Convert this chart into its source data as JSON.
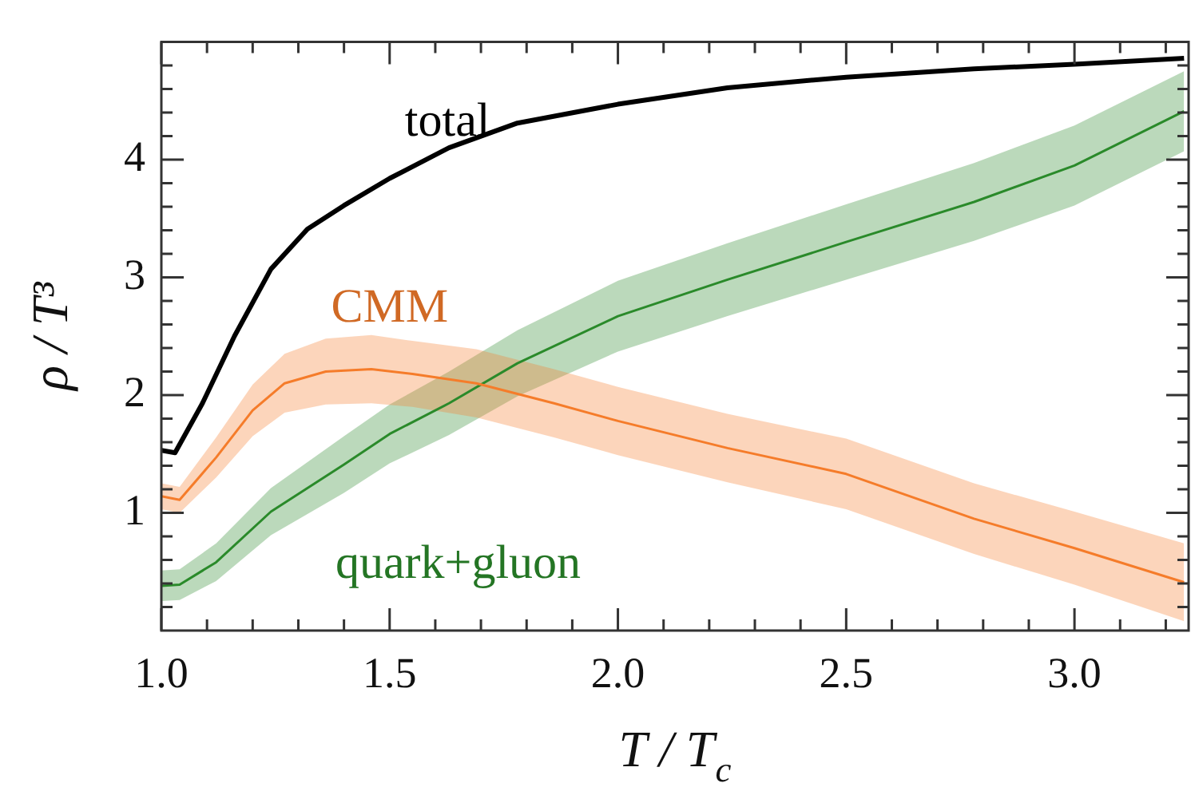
{
  "chart_data": {
    "type": "line",
    "xlabel": "T / T$_{c}$",
    "ylabel": "ρ / T³",
    "xlim": [
      1.0,
      3.25
    ],
    "ylim": [
      0,
      5
    ],
    "xticks": [
      {
        "value": 1.0,
        "label": "1.0"
      },
      {
        "value": 1.1,
        "label": null
      },
      {
        "value": 1.2,
        "label": null
      },
      {
        "value": 1.3,
        "label": null
      },
      {
        "value": 1.4,
        "label": null
      },
      {
        "value": 1.5,
        "label": "1.5"
      },
      {
        "value": 1.6,
        "label": null
      },
      {
        "value": 1.7,
        "label": null
      },
      {
        "value": 1.8,
        "label": null
      },
      {
        "value": 1.9,
        "label": null
      },
      {
        "value": 2.0,
        "label": "2.0"
      },
      {
        "value": 2.1,
        "label": null
      },
      {
        "value": 2.2,
        "label": null
      },
      {
        "value": 2.3,
        "label": null
      },
      {
        "value": 2.4,
        "label": null
      },
      {
        "value": 2.5,
        "label": "2.5"
      },
      {
        "value": 2.6,
        "label": null
      },
      {
        "value": 2.7,
        "label": null
      },
      {
        "value": 2.8,
        "label": null
      },
      {
        "value": 2.9,
        "label": null
      },
      {
        "value": 3.0,
        "label": "3.0"
      },
      {
        "value": 3.1,
        "label": null
      },
      {
        "value": 3.2,
        "label": null
      }
    ],
    "yticks": [
      {
        "value": 0.2,
        "label": null
      },
      {
        "value": 0.4,
        "label": null
      },
      {
        "value": 0.6,
        "label": null
      },
      {
        "value": 0.8,
        "label": null
      },
      1,
      {
        "value": 1.2,
        "label": null
      },
      {
        "value": 1.4,
        "label": null
      },
      {
        "value": 1.6,
        "label": null
      },
      {
        "value": 1.8,
        "label": null
      },
      2,
      {
        "value": 2.2,
        "label": null
      },
      {
        "value": 2.4,
        "label": null
      },
      {
        "value": 2.6,
        "label": null
      },
      {
        "value": 2.8,
        "label": null
      },
      3,
      {
        "value": 3.2,
        "label": null
      },
      {
        "value": 3.4,
        "label": null
      },
      {
        "value": 3.6,
        "label": null
      },
      {
        "value": 3.8,
        "label": null
      },
      4,
      {
        "value": 4.2,
        "label": null
      },
      {
        "value": 4.4,
        "label": null
      },
      {
        "value": 4.6,
        "label": null
      },
      {
        "value": 4.8,
        "label": null
      }
    ],
    "grid": false,
    "legend": false,
    "marker": "none",
    "line_style": "solid",
    "series": [
      {
        "name": "total",
        "color": "#000000",
        "x": [
          1.0,
          1.03,
          1.09,
          1.16,
          1.24,
          1.32,
          1.4,
          1.5,
          1.63,
          1.78,
          2.0,
          2.24,
          2.5,
          2.78,
          3.0,
          3.24
        ],
        "values": [
          1.53,
          1.51,
          1.93,
          2.5,
          3.07,
          3.41,
          3.61,
          3.84,
          4.1,
          4.31,
          4.47,
          4.61,
          4.7,
          4.77,
          4.81,
          4.86
        ]
      },
      {
        "name": "CMM",
        "color": "#f57c2a",
        "x": [
          1.0,
          1.04,
          1.12,
          1.2,
          1.27,
          1.36,
          1.46,
          1.55,
          1.69,
          1.86,
          2.0,
          2.24,
          2.5,
          2.78,
          3.0,
          3.24
        ],
        "values": [
          1.14,
          1.11,
          1.47,
          1.87,
          2.1,
          2.2,
          2.22,
          2.18,
          2.1,
          1.93,
          1.78,
          1.55,
          1.33,
          0.95,
          0.7,
          0.41
        ],
        "lower": [
          1.03,
          1.0,
          1.3,
          1.65,
          1.85,
          1.92,
          1.93,
          1.9,
          1.81,
          1.64,
          1.49,
          1.26,
          1.03,
          0.65,
          0.39,
          0.08
        ],
        "upper": [
          1.25,
          1.22,
          1.64,
          2.09,
          2.35,
          2.48,
          2.51,
          2.46,
          2.39,
          2.22,
          2.07,
          1.84,
          1.63,
          1.25,
          1.01,
          0.74
        ]
      },
      {
        "name": "quark+gluon",
        "color": "#2a8a2a",
        "x": [
          1.0,
          1.04,
          1.12,
          1.24,
          1.4,
          1.5,
          1.63,
          1.78,
          2.0,
          2.24,
          2.5,
          2.78,
          3.0,
          3.24
        ],
        "values": [
          0.38,
          0.39,
          0.58,
          1.01,
          1.41,
          1.67,
          1.93,
          2.27,
          2.67,
          2.98,
          3.3,
          3.64,
          3.95,
          4.41
        ],
        "lower": [
          0.25,
          0.26,
          0.42,
          0.81,
          1.17,
          1.42,
          1.66,
          1.99,
          2.37,
          2.67,
          2.98,
          3.31,
          3.61,
          4.07
        ],
        "upper": [
          0.51,
          0.52,
          0.74,
          1.21,
          1.65,
          1.92,
          2.2,
          2.55,
          2.97,
          3.29,
          3.62,
          3.97,
          4.29,
          4.75
        ]
      }
    ]
  }
}
